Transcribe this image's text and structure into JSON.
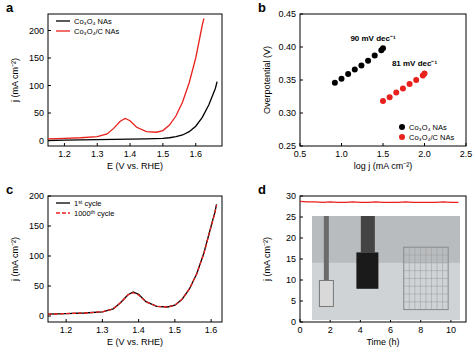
{
  "chart_data": [
    {
      "type": "line",
      "title": "a",
      "x_label": "E (V vs. RHE)",
      "y_label": "j (mA cm⁻²)",
      "xlim": [
        1.15,
        1.68
      ],
      "ylim": [
        -10,
        230
      ],
      "xticks": [
        1.2,
        1.3,
        1.4,
        1.5,
        1.6
      ],
      "yticks": [
        0,
        50,
        100,
        150,
        200
      ],
      "legend": "upper left",
      "series": [
        {
          "name": "Co₃O₄ NAs",
          "color": "#000000",
          "line_style": "solid",
          "x": [
            1.15,
            1.2,
            1.25,
            1.3,
            1.35,
            1.4,
            1.45,
            1.5,
            1.52,
            1.54,
            1.56,
            1.58,
            1.6,
            1.62,
            1.64,
            1.66,
            1.665
          ],
          "values": [
            0,
            0.5,
            1,
            1.5,
            2,
            2.5,
            3,
            4,
            5,
            7,
            10,
            16,
            26,
            42,
            65,
            95,
            107
          ]
        },
        {
          "name": "Co₃O₄/C NAs",
          "color": "#e8211c",
          "line_style": "solid",
          "x": [
            1.15,
            1.2,
            1.25,
            1.3,
            1.33,
            1.35,
            1.37,
            1.385,
            1.4,
            1.42,
            1.45,
            1.48,
            1.5,
            1.52,
            1.54,
            1.56,
            1.58,
            1.6,
            1.61,
            1.62,
            1.625
          ],
          "values": [
            3,
            4,
            5,
            7,
            12,
            22,
            35,
            40,
            36,
            24,
            16,
            15,
            18,
            28,
            45,
            70,
            105,
            150,
            180,
            210,
            222
          ]
        }
      ]
    },
    {
      "type": "scatter",
      "title": "b",
      "x_label": "log j (mA cm⁻²)",
      "y_label": "Overpotential (V)",
      "xlim": [
        0.5,
        2.5
      ],
      "ylim": [
        0.25,
        0.45
      ],
      "xticks": [
        0.5,
        {
          "value": 1,
          "label": "1.0"
        },
        1.5,
        {
          "value": 2,
          "label": "2.0"
        },
        2.5
      ],
      "yticks": [
        0.25,
        {
          "value": 0.3,
          "label": "0.30"
        },
        0.35,
        {
          "value": 0.4,
          "label": "0.40"
        },
        0.45
      ],
      "legend": "lower right",
      "marker": "circle",
      "series": [
        {
          "name": "Co₃O₄ NAs",
          "color": "#000000",
          "annotation": "90 mV dec⁻¹",
          "x": [
            0.92,
            1.0,
            1.08,
            1.16,
            1.24,
            1.32,
            1.4,
            1.48,
            1.5
          ],
          "values": [
            0.346,
            0.352,
            0.359,
            0.366,
            0.372,
            0.379,
            0.387,
            0.395,
            0.398
          ]
        },
        {
          "name": "Co₃O₄/C NAs",
          "color": "#e8211c",
          "annotation": "81 mV dec⁻¹",
          "x": [
            1.5,
            1.58,
            1.66,
            1.74,
            1.82,
            1.9,
            1.98,
            2.0
          ],
          "values": [
            0.318,
            0.324,
            0.331,
            0.337,
            0.344,
            0.35,
            0.357,
            0.36
          ]
        }
      ]
    },
    {
      "type": "line",
      "title": "c",
      "x_label": "E (V vs. RHE)",
      "y_label": "j (mA cm⁻²)",
      "xlim": [
        1.15,
        1.63
      ],
      "ylim": [
        -10,
        200
      ],
      "xticks": [
        1.2,
        1.3,
        1.4,
        1.5,
        1.6
      ],
      "yticks": [
        0,
        50,
        100,
        150,
        200
      ],
      "legend": "upper left",
      "series": [
        {
          "name": "1ˢᵗ cycle",
          "color": "#000000",
          "line_style": "solid",
          "x": [
            1.15,
            1.2,
            1.25,
            1.3,
            1.33,
            1.35,
            1.37,
            1.385,
            1.4,
            1.42,
            1.45,
            1.48,
            1.5,
            1.52,
            1.54,
            1.56,
            1.58,
            1.6,
            1.61,
            1.615
          ],
          "values": [
            3,
            4,
            5,
            7,
            12,
            22,
            35,
            40,
            36,
            24,
            16,
            15,
            18,
            28,
            45,
            70,
            105,
            150,
            172,
            186
          ]
        },
        {
          "name": "1000ᵗʰ cycle",
          "color": "#e8211c",
          "line_style": "dashed",
          "x": [
            1.15,
            1.2,
            1.25,
            1.3,
            1.33,
            1.35,
            1.37,
            1.385,
            1.4,
            1.42,
            1.45,
            1.48,
            1.5,
            1.52,
            1.54,
            1.56,
            1.58,
            1.6,
            1.61,
            1.615
          ],
          "values": [
            3,
            4,
            5,
            7,
            12,
            22,
            35,
            39,
            35,
            24,
            16,
            15,
            18,
            28,
            45,
            70,
            104,
            149,
            171,
            185
          ]
        }
      ]
    },
    {
      "type": "line",
      "title": "d",
      "x_label": "Time (h)",
      "y_label": "j (mA cm⁻²)",
      "xlim": [
        0,
        11
      ],
      "ylim": [
        0,
        30
      ],
      "xticks": [
        0,
        2,
        4,
        6,
        8,
        10
      ],
      "yticks": [
        0,
        5,
        10,
        15,
        20,
        25,
        30
      ],
      "series": [
        {
          "color": "#e8211c",
          "line_style": "solid",
          "x": [
            0,
            0.5,
            1,
            1.5,
            2,
            2.5,
            3,
            3.5,
            4,
            4.5,
            5,
            5.5,
            6,
            6.5,
            7,
            7.5,
            8,
            8.5,
            9,
            9.5,
            10,
            10.5
          ],
          "values": [
            28.7,
            28.6,
            28.6,
            28.5,
            28.6,
            28.5,
            28.5,
            28.6,
            28.5,
            28.5,
            28.6,
            28.5,
            28.5,
            28.5,
            28.6,
            28.5,
            28.5,
            28.5,
            28.5,
            28.6,
            28.5,
            28.5
          ]
        }
      ]
    }
  ]
}
